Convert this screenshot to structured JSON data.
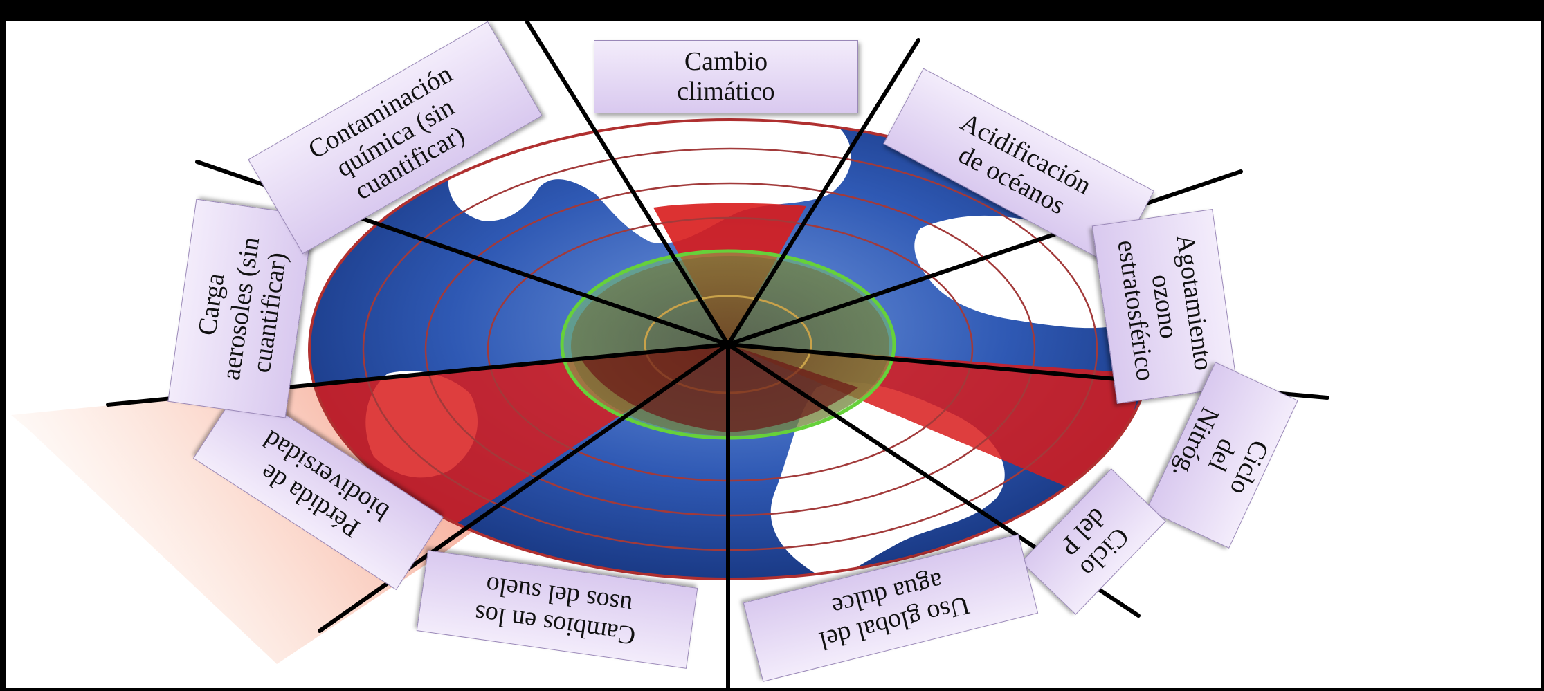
{
  "colors": {
    "ocean": "#2e57b0",
    "land": "#ffffff",
    "overshoot": "#d81c1c",
    "overshoot_dark": "#6e1a1a",
    "safe_zone": "#6cc24a",
    "label_bg": "#e6dbf5",
    "divider": "#000000"
  },
  "labels": {
    "climate": "Cambio\nclimático",
    "ocean_acid": "Acidificación\nde océanos",
    "ozone": "Agotamiento\nozono\nestratosférico",
    "nitrogen": "Ciclo\ndel\nNitróg.",
    "phosphorus": "Ciclo\ndel P",
    "freshwater": "Uso global del\nagua dulce",
    "land_use": "Cambios en los\nusos del suelo",
    "biodiversity": "Pérdida de\nbiodiversidad",
    "aerosols": "Carga\naerosoles (sin\ncuantificar)",
    "chemical": "Contaminación\nquímica (sin\ncuantificar)"
  }
}
